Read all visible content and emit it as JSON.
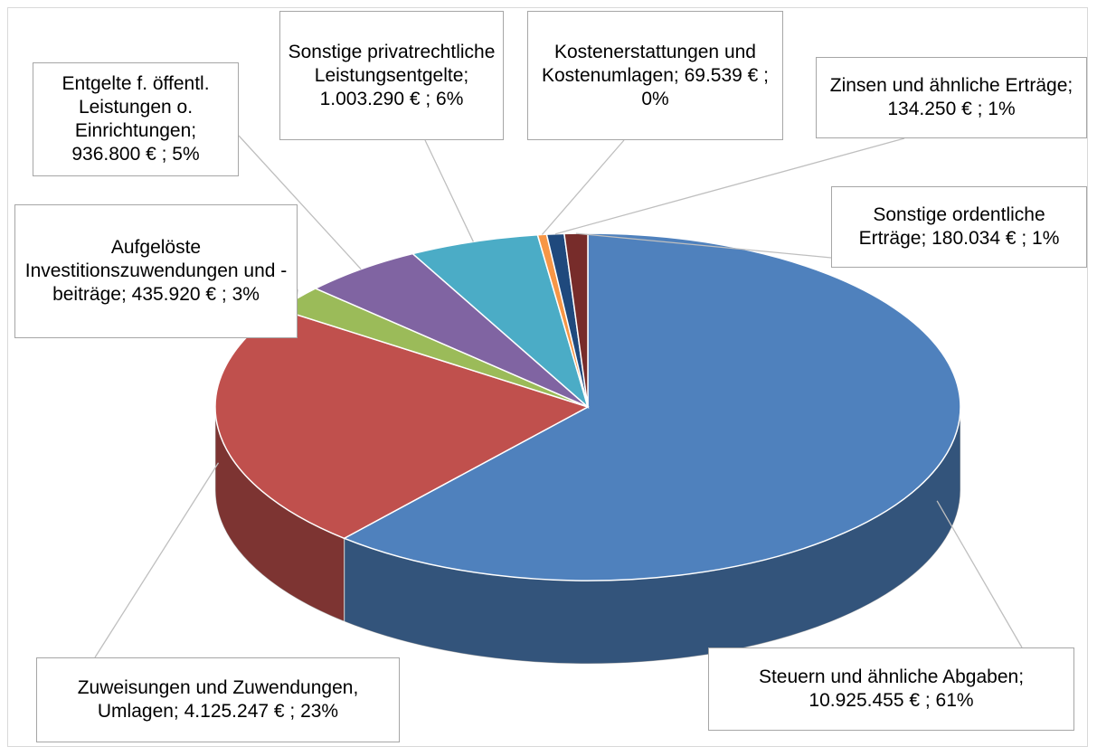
{
  "chart_data": {
    "type": "pie3d",
    "categories": [
      "Steuern und ähnliche Abgaben;",
      "Zuweisungen und Zuwendungen, Umlagen;",
      "Aufgelöste Investitionszuwendungen und -beiträge;",
      "Entgelte f. öffentl. Leistungen o. Einrichtungen;",
      "Sonstige privatrechtliche Leistungsentgelte;",
      "Kostenerstattungen und Kostenumlagen;",
      "Zinsen und ähnliche Erträge;",
      "Sonstige ordentliche Erträge;"
    ],
    "values": [
      10925455,
      4125247,
      435920,
      936800,
      1003290,
      69539,
      134250,
      180034
    ],
    "value_labels": [
      "10.925.455 € ; 61%",
      "4.125.247 € ; 23%",
      "435.920 € ; 3%",
      "936.800 € ; 5%",
      "1.003.290 € ; 6%",
      "69.539 € ; 0%",
      "134.250 € ; 1%",
      "180.034 € ; 1%"
    ],
    "colors": [
      "#4f81bd",
      "#c0504d",
      "#9bbb59",
      "#8064a2",
      "#4bacc6",
      "#f79646",
      "#1f497d",
      "#772c2a"
    ]
  }
}
